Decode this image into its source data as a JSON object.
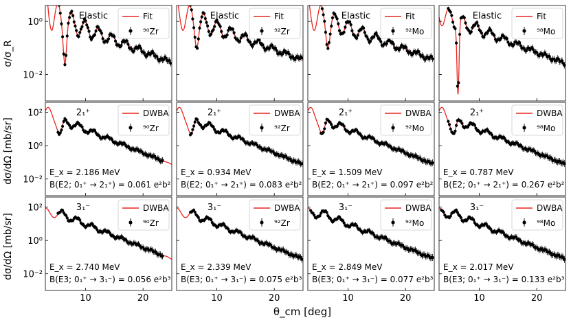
{
  "figure": {
    "x_axis_label": "θ_cm [deg]",
    "row_ylabels": [
      "σ/σ_R",
      "dσ/dΩ [mb/sr]",
      "dσ/dΩ [mb/sr]"
    ],
    "x_ticks": [
      10,
      20
    ],
    "x_tick_labels": [
      "10",
      "20"
    ],
    "line_color": "#e8231e",
    "marker_color": "#000000"
  },
  "chart_data": [
    {
      "type": "line",
      "row": 0,
      "col": 0,
      "title": "Elastic",
      "legend": [
        "Fit",
        "⁹⁰Zr"
      ],
      "xlim": [
        3,
        25
      ],
      "ylim_log10": [
        -3,
        0.6
      ],
      "yticks": [
        "10⁰",
        "10⁻²"
      ],
      "energy": "",
      "transition": "",
      "nucleus": "90Zr",
      "curve": "elastic_light",
      "data_start_deg": 5.2
    },
    {
      "type": "line",
      "row": 0,
      "col": 1,
      "title": "Elastic",
      "legend": [
        "Fit",
        "⁹²Zr"
      ],
      "xlim": [
        3,
        25
      ],
      "ylim_log10": [
        -3,
        0.6
      ],
      "yticks": [],
      "energy": "",
      "transition": "",
      "nucleus": "92Zr",
      "curve": "elastic_mid",
      "data_start_deg": 5.4
    },
    {
      "type": "line",
      "row": 0,
      "col": 2,
      "title": "Elastic",
      "legend": [
        "Fit",
        "⁹²Mo"
      ],
      "xlim": [
        3,
        25
      ],
      "ylim_log10": [
        -3,
        0.6
      ],
      "yticks": [],
      "energy": "",
      "transition": "",
      "nucleus": "92Mo",
      "curve": "elastic_mid",
      "data_start_deg": 5.3
    },
    {
      "type": "line",
      "row": 0,
      "col": 3,
      "title": "Elastic",
      "legend": [
        "Fit",
        "⁹⁸Mo"
      ],
      "xlim": [
        3,
        25
      ],
      "ylim_log10": [
        -3,
        0.6
      ],
      "yticks": [],
      "energy": "",
      "transition": "",
      "nucleus": "98Mo",
      "curve": "elastic_deep",
      "data_start_deg": 4.6
    },
    {
      "type": "line",
      "row": 1,
      "col": 0,
      "title": "2₁⁺",
      "legend": [
        "DWBA",
        "⁹⁰Zr"
      ],
      "xlim": [
        3,
        25
      ],
      "ylim_log10": [
        -3,
        2.6
      ],
      "yticks": [
        "10²",
        "10⁰",
        "10⁻²"
      ],
      "energy": "E_x = 2.186 MeV",
      "transition": "B(E2; 0₁⁺ → 2₁⁺) = 0.061 e²b²",
      "nucleus": "90Zr",
      "curve": "inel2",
      "data_start_deg": 5.2,
      "data_end_deg": 23.5
    },
    {
      "type": "line",
      "row": 1,
      "col": 1,
      "title": "2₁⁺",
      "legend": [
        "DWBA",
        "⁹²Zr"
      ],
      "xlim": [
        3,
        25
      ],
      "ylim_log10": [
        -3,
        2.6
      ],
      "yticks": [],
      "energy": "E_x = 0.934 MeV",
      "transition": "B(E2; 0₁⁺ → 2₁⁺) = 0.083 e²b²",
      "nucleus": "92Zr",
      "curve": "inel2",
      "data_start_deg": 5.4
    },
    {
      "type": "line",
      "row": 1,
      "col": 2,
      "title": "2₁⁺",
      "legend": [
        "DWBA",
        "⁹²Mo"
      ],
      "xlim": [
        3,
        25
      ],
      "ylim_log10": [
        -3,
        2.6
      ],
      "yticks": [],
      "energy": "E_x = 1.509 MeV",
      "transition": "B(E2; 0₁⁺ → 2₁⁺) = 0.097 e²b²",
      "nucleus": "92Mo",
      "curve": "inel2",
      "data_start_deg": 5.3
    },
    {
      "type": "line",
      "row": 1,
      "col": 3,
      "title": "2₁⁺",
      "legend": [
        "DWBA",
        "⁹⁸Mo"
      ],
      "xlim": [
        3,
        25
      ],
      "ylim_log10": [
        -3,
        2.6
      ],
      "yticks": [],
      "energy": "E_x = 0.787 MeV",
      "transition": "B(E2; 0₁⁺ → 2₁⁺) = 0.267 e²b²",
      "nucleus": "98Mo",
      "curve": "inel2",
      "data_start_deg": 4.6
    },
    {
      "type": "line",
      "row": 2,
      "col": 0,
      "title": "3₁⁻",
      "legend": [
        "DWBA",
        "⁹⁰Zr"
      ],
      "xlim": [
        3,
        25
      ],
      "ylim_log10": [
        -3,
        2.6
      ],
      "yticks": [
        "10²",
        "10⁰",
        "10⁻²"
      ],
      "energy": "E_x = 2.740 MeV",
      "transition": "B(E3; 0₁⁺ → 3₁⁻) = 0.056 e²b³",
      "nucleus": "90Zr",
      "curve": "inel3",
      "data_start_deg": 5.2,
      "data_end_deg": 23.5
    },
    {
      "type": "line",
      "row": 2,
      "col": 1,
      "title": "3₁⁻",
      "legend": [
        "DWBA",
        "⁹²Zr"
      ],
      "xlim": [
        3,
        25
      ],
      "ylim_log10": [
        -3,
        2.6
      ],
      "yticks": [],
      "energy": "E_x = 2.339 MeV",
      "transition": "B(E3; 0₁⁺ → 3₁⁻) = 0.075 e²b³",
      "nucleus": "92Zr",
      "curve": "inel3",
      "data_start_deg": 5.4
    },
    {
      "type": "line",
      "row": 2,
      "col": 2,
      "title": "3₁⁻",
      "legend": [
        "DWBA",
        "⁹²Mo"
      ],
      "xlim": [
        3,
        25
      ],
      "ylim_log10": [
        -3,
        2.6
      ],
      "yticks": [],
      "energy": "E_x = 2.849 MeV",
      "transition": "B(E3; 0₁⁺ → 3₁⁻) = 0.077 e²b³",
      "nucleus": "92Mo",
      "curve": "inel3",
      "data_start_deg": 3.5
    },
    {
      "type": "line",
      "row": 2,
      "col": 3,
      "title": "3₁⁻",
      "legend": [
        "DWBA",
        "⁹⁸Mo"
      ],
      "xlim": [
        3,
        25
      ],
      "ylim_log10": [
        -3,
        2.6
      ],
      "yticks": [],
      "energy": "E_x = 2.017 MeV",
      "transition": "B(E3; 0₁⁺ → 3₁⁻) = 0.133 e²b³",
      "nucleus": "98Mo",
      "curve": "inel3",
      "data_start_deg": 3.4
    }
  ]
}
